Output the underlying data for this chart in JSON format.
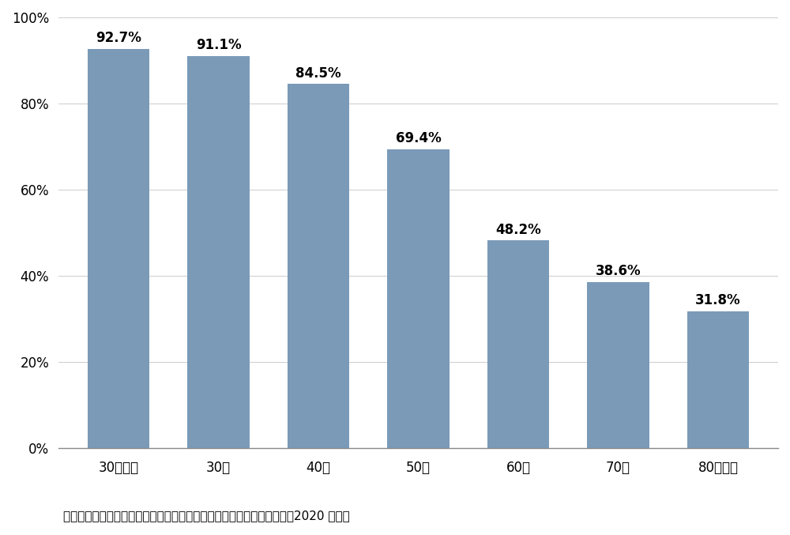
{
  "categories": [
    "30代未満",
    "30代",
    "40代",
    "50代",
    "60代",
    "70代",
    "80代以上"
  ],
  "values": [
    92.7,
    91.1,
    84.5,
    69.4,
    48.2,
    38.6,
    31.8
  ],
  "bar_color": "#7a9ab8",
  "background_color": "#ffffff",
  "ylim": [
    0,
    100
  ],
  "yticks": [
    0,
    20,
    40,
    60,
    80,
    100
  ],
  "label_fontsize": 12,
  "tick_fontsize": 12,
  "caption": "資料：（株）帝国データバンク「全国企業「後継者不在率」動向調査（2020 年）」",
  "caption_fontsize": 11
}
